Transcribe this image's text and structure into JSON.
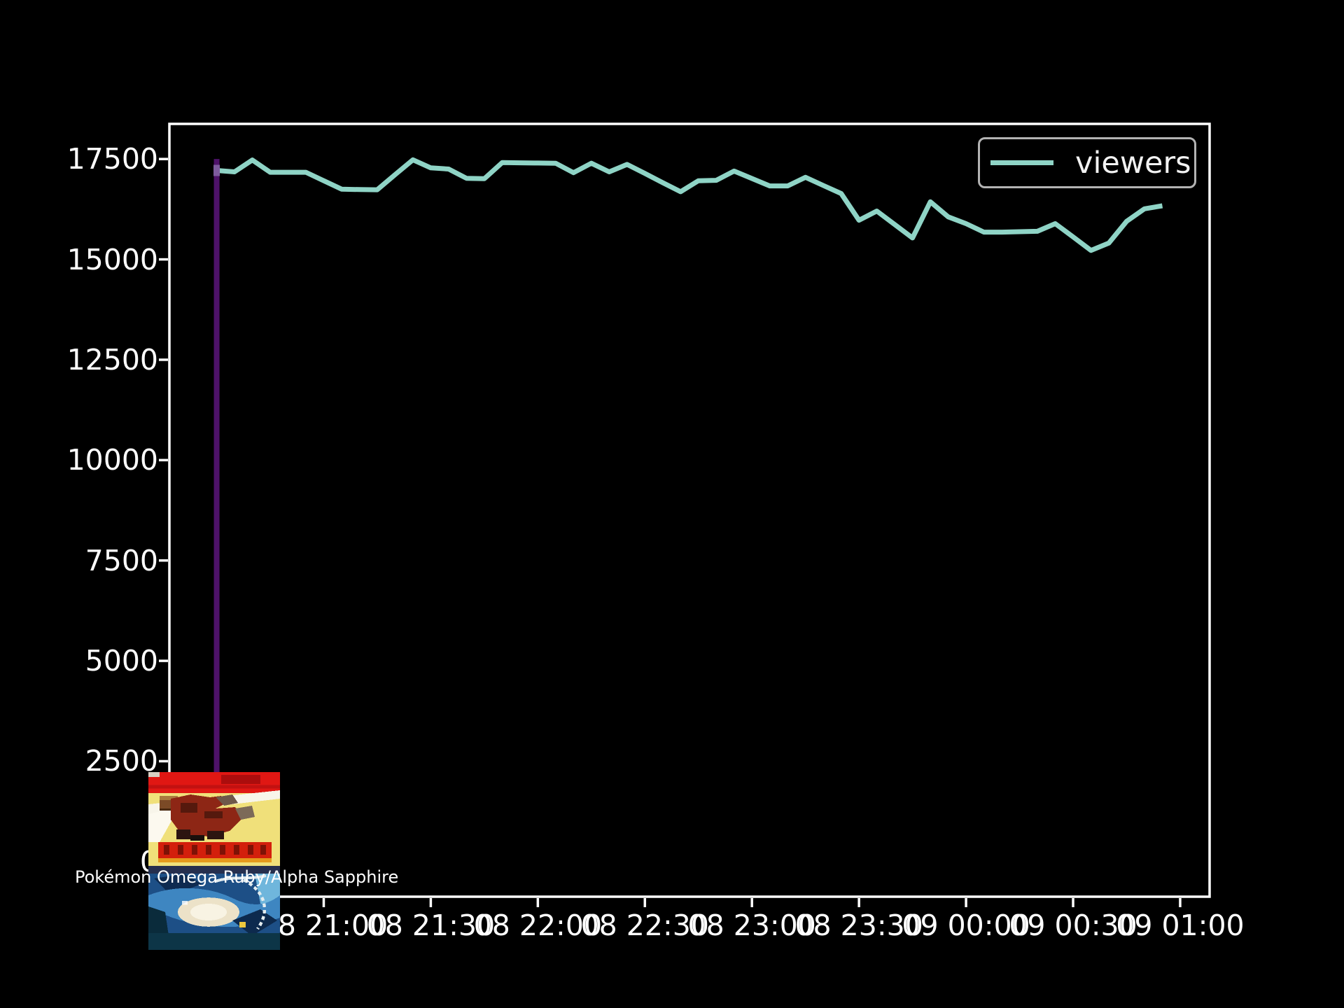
{
  "colors": {
    "background": "#000000",
    "text": "#ffffff",
    "axis": "#ffffff",
    "series_line": "#8fd4c6",
    "marker_line": "#4e1269",
    "marker_blend": "#7e5b9e",
    "legend_edge": "#b3b3b3"
  },
  "legend": {
    "label": "viewers",
    "position": "upper right"
  },
  "annotation": {
    "game_title": "Pokémon Omega Ruby/Alpha Sapphire"
  },
  "chart_data": {
    "type": "line",
    "title": "",
    "xlabel": "",
    "ylabel": "",
    "grid": false,
    "axes": {
      "xlim_minutes_from_day08_midnight": [
        1216.75,
        1508.25
      ],
      "ylim": [
        -875,
        18375
      ],
      "x_ticks": [
        "08 21:00",
        "08 21:30",
        "08 22:00",
        "08 22:30",
        "08 23:00",
        "08 23:30",
        "09 00:00",
        "09 00:30",
        "09 01:00"
      ],
      "y_ticks": [
        0,
        2500,
        5000,
        7500,
        10000,
        12500,
        15000,
        17500
      ]
    },
    "markers": [
      {
        "type": "vline",
        "time": "08 20:30",
        "from_value": 0,
        "to_value": 17500,
        "color": "#4e1269"
      }
    ],
    "series": [
      {
        "name": "viewers",
        "color": "#8fd4c6",
        "sample_interval_minutes": 5,
        "points": [
          {
            "time": "08 20:30",
            "viewers": 17215
          },
          {
            "time": "08 20:35",
            "viewers": 17180
          },
          {
            "time": "08 20:40",
            "viewers": 17475
          },
          {
            "time": "08 20:45",
            "viewers": 17170
          },
          {
            "time": "08 20:50",
            "viewers": 17170
          },
          {
            "time": "08 20:55",
            "viewers": 17170
          },
          {
            "time": "08 21:00",
            "viewers": 16960
          },
          {
            "time": "08 21:05",
            "viewers": 16750
          },
          {
            "time": "08 21:10",
            "viewers": 16740
          },
          {
            "time": "08 21:15",
            "viewers": 16735
          },
          {
            "time": "08 21:20",
            "viewers": 17110
          },
          {
            "time": "08 21:25",
            "viewers": 17480
          },
          {
            "time": "08 21:30",
            "viewers": 17280
          },
          {
            "time": "08 21:35",
            "viewers": 17250
          },
          {
            "time": "08 21:40",
            "viewers": 17020
          },
          {
            "time": "08 21:45",
            "viewers": 17010
          },
          {
            "time": "08 21:50",
            "viewers": 17410
          },
          {
            "time": "08 21:55",
            "viewers": 17405
          },
          {
            "time": "08 22:00",
            "viewers": 17400
          },
          {
            "time": "08 22:05",
            "viewers": 17395
          },
          {
            "time": "08 22:10",
            "viewers": 17160
          },
          {
            "time": "08 22:15",
            "viewers": 17395
          },
          {
            "time": "08 22:20",
            "viewers": 17180
          },
          {
            "time": "08 22:25",
            "viewers": 17365
          },
          {
            "time": "08 22:30",
            "viewers": 17140
          },
          {
            "time": "08 22:35",
            "viewers": 16910
          },
          {
            "time": "08 22:40",
            "viewers": 16685
          },
          {
            "time": "08 22:45",
            "viewers": 16960
          },
          {
            "time": "08 22:50",
            "viewers": 16970
          },
          {
            "time": "08 22:55",
            "viewers": 17200
          },
          {
            "time": "08 23:00",
            "viewers": 17015
          },
          {
            "time": "08 23:05",
            "viewers": 16830
          },
          {
            "time": "08 23:10",
            "viewers": 16830
          },
          {
            "time": "08 23:15",
            "viewers": 17045
          },
          {
            "time": "08 23:20",
            "viewers": 16840
          },
          {
            "time": "08 23:25",
            "viewers": 16640
          },
          {
            "time": "08 23:30",
            "viewers": 15975
          },
          {
            "time": "08 23:35",
            "viewers": 16205
          },
          {
            "time": "08 23:40",
            "viewers": 15870
          },
          {
            "time": "08 23:45",
            "viewers": 15535
          },
          {
            "time": "08 23:50",
            "viewers": 16435
          },
          {
            "time": "08 23:55",
            "viewers": 16060
          },
          {
            "time": "09 00:00",
            "viewers": 15890
          },
          {
            "time": "09 00:05",
            "viewers": 15680
          },
          {
            "time": "09 00:10",
            "viewers": 15680
          },
          {
            "time": "09 00:15",
            "viewers": 15690
          },
          {
            "time": "09 00:20",
            "viewers": 15700
          },
          {
            "time": "09 00:25",
            "viewers": 15890
          },
          {
            "time": "09 00:30",
            "viewers": 15560
          },
          {
            "time": "09 00:35",
            "viewers": 15225
          },
          {
            "time": "09 00:40",
            "viewers": 15405
          },
          {
            "time": "09 00:45",
            "viewers": 15950
          },
          {
            "time": "09 00:50",
            "viewers": 16260
          },
          {
            "time": "09 00:55",
            "viewers": 16335
          }
        ]
      }
    ],
    "legend_entries": [
      "viewers"
    ]
  }
}
